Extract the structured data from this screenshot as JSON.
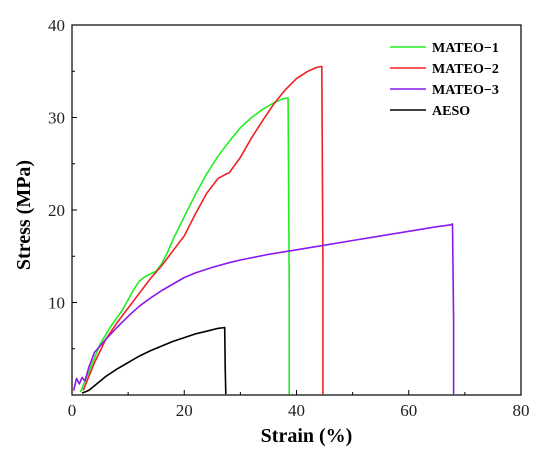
{
  "chart_data": {
    "type": "line",
    "xlabel": "Strain (%)",
    "ylabel": "Stress (MPa)",
    "xlim": [
      0,
      80
    ],
    "ylim": [
      0,
      40
    ],
    "xticks": [
      0,
      20,
      40,
      60,
      80
    ],
    "yticks": [
      10,
      20,
      30,
      40
    ],
    "grid": false,
    "legend_position": "top-right",
    "series": [
      {
        "name": "MATEO−1",
        "color": "#22ee22",
        "x": [
          1.5,
          3,
          5,
          7,
          9,
          10,
          11,
          12,
          13,
          14,
          15,
          16,
          17,
          18,
          20,
          22,
          24,
          26,
          28,
          30,
          32,
          34,
          36,
          37.5,
          38.2,
          38.5,
          38.7,
          38.7
        ],
        "y": [
          0.3,
          2.5,
          5.5,
          7.5,
          9.2,
          10.3,
          11.4,
          12.3,
          12.8,
          13.1,
          13.4,
          14.2,
          15.4,
          16.8,
          19.3,
          21.7,
          23.9,
          25.8,
          27.4,
          28.9,
          30.0,
          30.9,
          31.6,
          32.0,
          32.1,
          32.1,
          12.0,
          0.1
        ]
      },
      {
        "name": "MATEO−2",
        "color": "#ee2222",
        "x": [
          2,
          4,
          6,
          8,
          10,
          12,
          14,
          16,
          18,
          20,
          22,
          24,
          26,
          27.5,
          28,
          30,
          32,
          34,
          36,
          38,
          40,
          42,
          43.5,
          44.3,
          44.5,
          44.7,
          44.7
        ],
        "y": [
          0.5,
          3.5,
          6.0,
          7.8,
          9.4,
          11.0,
          12.6,
          14.0,
          15.6,
          17.2,
          19.6,
          21.8,
          23.4,
          23.9,
          24.0,
          25.7,
          27.8,
          29.7,
          31.5,
          33.0,
          34.2,
          35.0,
          35.4,
          35.5,
          35.5,
          15.0,
          0.1
        ]
      },
      {
        "name": "MATEO−3",
        "color": "#8a1aee",
        "x": [
          0.3,
          0.8,
          1.3,
          1.8,
          2.3,
          3,
          4,
          6,
          8,
          10,
          12,
          14,
          16,
          18,
          20,
          22,
          25,
          28,
          30,
          35,
          40,
          45,
          50,
          55,
          60,
          65,
          67.5,
          67.8,
          68,
          68
        ],
        "y": [
          0.5,
          1.8,
          1.2,
          1.9,
          1.5,
          3.0,
          4.6,
          6.0,
          7.3,
          8.5,
          9.6,
          10.5,
          11.3,
          12.0,
          12.7,
          13.2,
          13.8,
          14.3,
          14.6,
          15.2,
          15.7,
          16.2,
          16.7,
          17.2,
          17.7,
          18.2,
          18.4,
          18.5,
          8.0,
          0.1
        ]
      },
      {
        "name": "AESO",
        "color": "#000000",
        "x": [
          1.8,
          3,
          4,
          6,
          8,
          10,
          12,
          14,
          16,
          18,
          20,
          22,
          24,
          26,
          27.2,
          27.3,
          27.4
        ],
        "y": [
          0.2,
          0.5,
          1.0,
          2.0,
          2.8,
          3.5,
          4.2,
          4.8,
          5.3,
          5.8,
          6.2,
          6.6,
          6.9,
          7.2,
          7.3,
          3.0,
          0.1
        ]
      }
    ]
  }
}
